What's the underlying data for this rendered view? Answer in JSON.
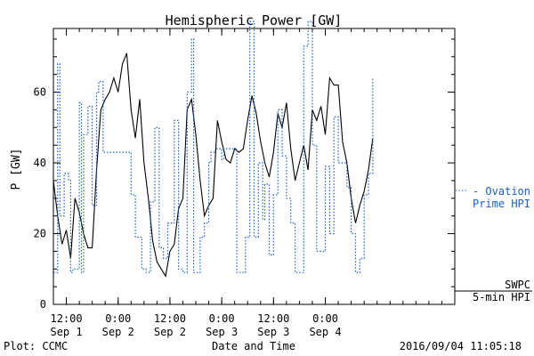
{
  "chart_data": {
    "type": "line",
    "title": "Hemispheric Power [GW]",
    "ylabel": "P [GW]",
    "xlabel": "Date and Time",
    "ylim": [
      0,
      78
    ],
    "yticks": [
      0,
      20,
      40,
      60
    ],
    "xlim": [
      "2016-09-01 09:00",
      "2016-09-05 06:00"
    ],
    "xticks": [
      {
        "t": "2016-09-01 12:00",
        "line1": "12:00",
        "line2": "Sep 1"
      },
      {
        "t": "2016-09-02 00:00",
        "line1": "0:00",
        "line2": "Sep 2"
      },
      {
        "t": "2016-09-02 12:00",
        "line1": "12:00",
        "line2": "Sep 2"
      },
      {
        "t": "2016-09-03 00:00",
        "line1": "0:00",
        "line2": "Sep 3"
      },
      {
        "t": "2016-09-03 12:00",
        "line1": "12:00",
        "line2": "Sep 3"
      },
      {
        "t": "2016-09-04 00:00",
        "line1": "0:00",
        "line2": "Sep 4"
      }
    ],
    "series": [
      {
        "name_lines": [
          "SWPC",
          "5-min HPI"
        ],
        "color": "#000000",
        "style": "solid",
        "x": [
          "2016-09-01 09:00",
          "2016-09-01 10:00",
          "2016-09-01 11:00",
          "2016-09-01 12:00",
          "2016-09-01 13:00",
          "2016-09-01 14:00",
          "2016-09-01 15:00",
          "2016-09-01 16:00",
          "2016-09-01 17:00",
          "2016-09-01 18:00",
          "2016-09-01 19:00",
          "2016-09-01 20:00",
          "2016-09-01 21:00",
          "2016-09-01 22:00",
          "2016-09-01 23:00",
          "2016-09-02 00:00",
          "2016-09-02 01:00",
          "2016-09-02 02:00",
          "2016-09-02 03:00",
          "2016-09-02 04:00",
          "2016-09-02 05:00",
          "2016-09-02 06:00",
          "2016-09-02 07:00",
          "2016-09-02 08:00",
          "2016-09-02 09:00",
          "2016-09-02 10:00",
          "2016-09-02 11:00",
          "2016-09-02 12:00",
          "2016-09-02 13:00",
          "2016-09-02 14:00",
          "2016-09-02 15:00",
          "2016-09-02 16:00",
          "2016-09-02 17:00",
          "2016-09-02 18:00",
          "2016-09-02 19:00",
          "2016-09-02 20:00",
          "2016-09-02 21:00",
          "2016-09-02 22:00",
          "2016-09-02 23:00",
          "2016-09-03 00:00",
          "2016-09-03 01:00",
          "2016-09-03 02:00",
          "2016-09-03 03:00",
          "2016-09-03 04:00",
          "2016-09-03 05:00",
          "2016-09-03 06:00",
          "2016-09-03 07:00",
          "2016-09-03 08:00",
          "2016-09-03 09:00",
          "2016-09-03 10:00",
          "2016-09-03 11:00",
          "2016-09-03 12:00",
          "2016-09-03 13:00",
          "2016-09-03 14:00",
          "2016-09-03 15:00",
          "2016-09-03 16:00",
          "2016-09-03 17:00",
          "2016-09-03 18:00",
          "2016-09-03 19:00",
          "2016-09-03 20:00",
          "2016-09-03 21:00",
          "2016-09-03 22:00",
          "2016-09-03 23:00",
          "2016-09-04 00:00",
          "2016-09-04 01:00",
          "2016-09-04 02:00",
          "2016-09-04 03:00",
          "2016-09-04 04:00",
          "2016-09-04 05:00",
          "2016-09-04 06:00",
          "2016-09-04 07:00",
          "2016-09-04 08:00",
          "2016-09-04 09:00",
          "2016-09-04 10:00",
          "2016-09-04 11:00"
        ],
        "y": [
          35,
          25,
          17,
          21,
          13,
          30,
          26,
          20,
          16,
          16,
          38,
          55,
          58,
          60,
          64,
          60,
          68,
          71,
          55,
          47,
          58,
          40,
          30,
          18,
          12,
          10,
          8,
          15,
          17,
          27,
          30,
          55,
          58,
          48,
          35,
          25,
          28,
          30,
          52,
          46,
          41,
          40,
          44,
          43,
          44,
          52,
          59,
          54,
          46,
          40,
          36,
          43,
          54,
          50,
          57,
          44,
          35,
          40,
          45,
          38,
          55,
          52,
          56,
          48,
          64,
          62,
          62,
          46,
          40,
          30,
          23,
          28,
          32,
          38,
          47
        ]
      },
      {
        "name_lines": [
          "- Ovation",
          "Prime HPI"
        ],
        "color": "#1a5fc8",
        "style": "dotted",
        "x": [
          "2016-09-01 09:00",
          "2016-09-01 10:00",
          "2016-09-01 10:30",
          "2016-09-01 11:30",
          "2016-09-01 12:30",
          "2016-09-01 13:00",
          "2016-09-01 13:30",
          "2016-09-01 15:00",
          "2016-09-01 15:30",
          "2016-09-01 16:00",
          "2016-09-01 17:00",
          "2016-09-01 18:00",
          "2016-09-01 19:00",
          "2016-09-01 19:30",
          "2016-09-01 20:30",
          "2016-09-01 21:00",
          "2016-09-01 22:00",
          "2016-09-01 22:30",
          "2016-09-02 00:00",
          "2016-09-02 01:00",
          "2016-09-02 03:00",
          "2016-09-02 04:00",
          "2016-09-02 05:30",
          "2016-09-02 06:30",
          "2016-09-02 07:30",
          "2016-09-02 08:30",
          "2016-09-02 09:30",
          "2016-09-02 10:30",
          "2016-09-02 11:30",
          "2016-09-02 13:00",
          "2016-09-02 14:00",
          "2016-09-02 15:00",
          "2016-09-02 16:00",
          "2016-09-02 17:00",
          "2016-09-02 17:30",
          "2016-09-02 19:00",
          "2016-09-02 20:00",
          "2016-09-02 21:00",
          "2016-09-02 21:30",
          "2016-09-02 22:30",
          "2016-09-03 00:00",
          "2016-09-03 00:30",
          "2016-09-03 02:00",
          "2016-09-03 03:30",
          "2016-09-03 04:30",
          "2016-09-03 05:30",
          "2016-09-03 06:30",
          "2016-09-03 07:30",
          "2016-09-03 08:30",
          "2016-09-03 09:30",
          "2016-09-03 10:00",
          "2016-09-03 11:00",
          "2016-09-03 12:00",
          "2016-09-03 13:00",
          "2016-09-03 14:00",
          "2016-09-03 15:00",
          "2016-09-03 16:00",
          "2016-09-03 17:00",
          "2016-09-03 18:00",
          "2016-09-03 19:00",
          "2016-09-03 20:00",
          "2016-09-03 21:00",
          "2016-09-03 22:00",
          "2016-09-04 00:00",
          "2016-09-04 01:00",
          "2016-09-04 02:00",
          "2016-09-04 03:00",
          "2016-09-04 05:00",
          "2016-09-04 06:00",
          "2016-09-04 07:00",
          "2016-09-04 08:00",
          "2016-09-04 09:00",
          "2016-09-04 10:00",
          "2016-09-04 11:00"
        ],
        "y": [
          9,
          68,
          25,
          37,
          35,
          9,
          10,
          57,
          9,
          48,
          56,
          28,
          60,
          63,
          43,
          43,
          43,
          43,
          43,
          43,
          31,
          19,
          10,
          9,
          29,
          50,
          16,
          13,
          23,
          52,
          10,
          9,
          60,
          75,
          9,
          19,
          23,
          40,
          43,
          44,
          41,
          44,
          44,
          9,
          9,
          19,
          80,
          19,
          40,
          24,
          34,
          14,
          31,
          55,
          42,
          30,
          23,
          9,
          9,
          73,
          80,
          45,
          15,
          39,
          20,
          53,
          40,
          33,
          20,
          9,
          13,
          31,
          37,
          64
        ]
      }
    ],
    "annotations": {
      "left": "Plot: CCMC",
      "right": "2016/09/04 11:05:18"
    }
  }
}
